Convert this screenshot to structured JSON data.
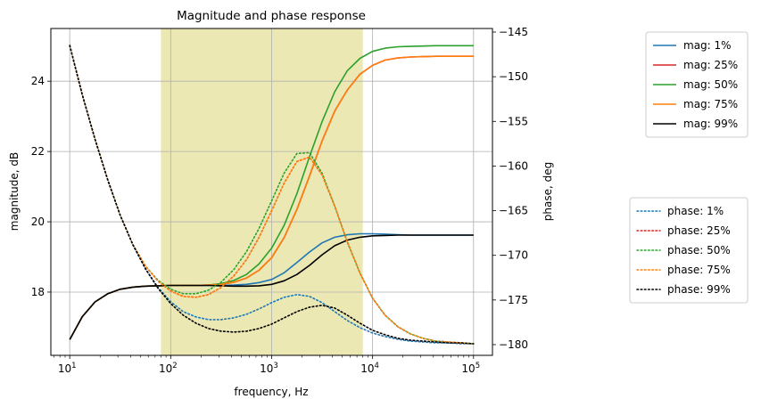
{
  "chart_data": {
    "type": "line",
    "title": "Magnitude and phase response",
    "xlabel": "frequency, Hz",
    "ylabel": "magnitude, dB",
    "y2label": "phase, deg",
    "xscale": "log",
    "xlim": [
      6.5,
      154000
    ],
    "ylim": [
      16.2,
      25.5
    ],
    "y2lim": [
      -181.2,
      -144.6
    ],
    "grid": true,
    "x_ticks": [
      {
        "value": 10,
        "base": "10",
        "exp": "1"
      },
      {
        "value": 100,
        "base": "10",
        "exp": "2"
      },
      {
        "value": 1000,
        "base": "10",
        "exp": "3"
      },
      {
        "value": 10000,
        "base": "10",
        "exp": "4"
      },
      {
        "value": 100000,
        "base": "10",
        "exp": "5"
      }
    ],
    "y_ticks": [
      "18",
      "20",
      "22",
      "24"
    ],
    "y2_ticks": [
      "−145",
      "−150",
      "−155",
      "−160",
      "−165",
      "−170",
      "−175",
      "−180"
    ],
    "shaded_band": {
      "x_from": 80,
      "x_to": 8000,
      "color": "#e0dc8a"
    },
    "x": [
      10,
      13.3,
      17.8,
      23.7,
      31.6,
      42.2,
      56.2,
      75,
      100,
      133,
      178,
      237,
      316,
      422,
      562,
      750,
      1000,
      1330,
      1780,
      2370,
      3160,
      4220,
      5620,
      7500,
      10000,
      13300,
      17800,
      23700,
      31600,
      42200,
      56200,
      75000,
      100000
    ],
    "magnitude_series": [
      {
        "name": "mag: 1%",
        "color": "#1f77b4",
        "values": [
          16.65,
          17.3,
          17.72,
          17.95,
          18.08,
          18.14,
          18.17,
          18.18,
          18.19,
          18.19,
          18.19,
          18.19,
          18.19,
          18.2,
          18.22,
          18.27,
          18.36,
          18.55,
          18.84,
          19.14,
          19.4,
          19.56,
          19.63,
          19.66,
          19.66,
          19.65,
          19.63,
          19.62,
          19.62,
          19.62,
          19.62,
          19.62,
          19.62
        ]
      },
      {
        "name": "mag: 25%",
        "color": "#d62728",
        "values": [
          16.65,
          17.3,
          17.72,
          17.95,
          18.08,
          18.14,
          18.17,
          18.18,
          18.19,
          18.19,
          18.19,
          18.2,
          18.22,
          18.28,
          18.4,
          18.62,
          18.98,
          19.55,
          20.35,
          21.3,
          22.3,
          23.15,
          23.75,
          24.2,
          24.45,
          24.6,
          24.66,
          24.69,
          24.7,
          24.71,
          24.71,
          24.71,
          24.71
        ]
      },
      {
        "name": "mag: 50%",
        "color": "#2ca02c",
        "values": [
          16.65,
          17.3,
          17.72,
          17.95,
          18.08,
          18.14,
          18.17,
          18.18,
          18.19,
          18.19,
          18.19,
          18.2,
          18.24,
          18.33,
          18.5,
          18.8,
          19.25,
          19.9,
          20.8,
          21.85,
          22.85,
          23.7,
          24.3,
          24.65,
          24.85,
          24.94,
          24.98,
          24.99,
          25.0,
          25.01,
          25.01,
          25.01,
          25.01
        ]
      },
      {
        "name": "mag: 75%",
        "color": "#ff7f0e",
        "values": [
          16.65,
          17.3,
          17.72,
          17.95,
          18.08,
          18.14,
          18.17,
          18.18,
          18.19,
          18.19,
          18.19,
          18.2,
          18.22,
          18.28,
          18.4,
          18.62,
          18.98,
          19.55,
          20.35,
          21.3,
          22.3,
          23.15,
          23.75,
          24.2,
          24.45,
          24.6,
          24.66,
          24.69,
          24.7,
          24.71,
          24.71,
          24.71,
          24.71
        ]
      },
      {
        "name": "mag: 99%",
        "color": "#000000",
        "values": [
          16.65,
          17.3,
          17.72,
          17.95,
          18.08,
          18.14,
          18.17,
          18.18,
          18.19,
          18.19,
          18.19,
          18.19,
          18.18,
          18.17,
          18.17,
          18.18,
          18.22,
          18.32,
          18.5,
          18.76,
          19.06,
          19.32,
          19.48,
          19.56,
          19.6,
          19.61,
          19.62,
          19.62,
          19.62,
          19.62,
          19.62,
          19.62,
          19.62
        ]
      }
    ],
    "phase_series": [
      {
        "name": "phase: 1%",
        "color": "#1f77b4",
        "values": [
          -146.5,
          -152,
          -157,
          -161.5,
          -165.5,
          -168.8,
          -171.5,
          -173.6,
          -175.2,
          -176.3,
          -176.9,
          -177.2,
          -177.2,
          -177.0,
          -176.6,
          -176.0,
          -175.3,
          -174.7,
          -174.4,
          -174.6,
          -175.3,
          -176.3,
          -177.3,
          -178.1,
          -178.7,
          -179.1,
          -179.4,
          -179.6,
          -179.7,
          -179.8,
          -179.8,
          -179.9,
          -179.9
        ]
      },
      {
        "name": "phase: 25%",
        "color": "#d62728",
        "values": [
          -146.5,
          -152,
          -157,
          -161.5,
          -165.5,
          -168.8,
          -171.2,
          -172.9,
          -174.0,
          -174.6,
          -174.7,
          -174.4,
          -173.6,
          -172.3,
          -170.5,
          -168.0,
          -165.0,
          -161.9,
          -159.5,
          -159.0,
          -161.0,
          -164.5,
          -168.5,
          -172.0,
          -174.8,
          -176.7,
          -178.0,
          -178.8,
          -179.3,
          -179.6,
          -179.7,
          -179.8,
          -179.9
        ]
      },
      {
        "name": "phase: 50%",
        "color": "#2ca02c",
        "values": [
          -146.5,
          -152,
          -157,
          -161.5,
          -165.5,
          -168.8,
          -171.2,
          -172.8,
          -173.8,
          -174.3,
          -174.3,
          -173.9,
          -173.0,
          -171.6,
          -169.6,
          -167.0,
          -163.9,
          -160.8,
          -158.6,
          -158.5,
          -160.8,
          -164.5,
          -168.5,
          -172.0,
          -174.8,
          -176.7,
          -178.0,
          -178.8,
          -179.3,
          -179.6,
          -179.7,
          -179.8,
          -179.9
        ]
      },
      {
        "name": "phase: 75%",
        "color": "#ff7f0e",
        "values": [
          -146.5,
          -152,
          -157,
          -161.5,
          -165.5,
          -168.8,
          -171.2,
          -172.9,
          -174.0,
          -174.6,
          -174.7,
          -174.4,
          -173.6,
          -172.3,
          -170.5,
          -168.0,
          -165.0,
          -161.9,
          -159.5,
          -159.0,
          -161.0,
          -164.5,
          -168.5,
          -172.0,
          -174.8,
          -176.7,
          -178.0,
          -178.8,
          -179.3,
          -179.6,
          -179.7,
          -179.8,
          -179.9
        ]
      },
      {
        "name": "phase: 99%",
        "color": "#000000",
        "values": [
          -146.5,
          -152,
          -157,
          -161.5,
          -165.5,
          -168.8,
          -171.5,
          -173.7,
          -175.4,
          -176.7,
          -177.6,
          -178.2,
          -178.5,
          -178.6,
          -178.5,
          -178.2,
          -177.7,
          -177.0,
          -176.3,
          -175.8,
          -175.6,
          -175.9,
          -176.7,
          -177.6,
          -178.4,
          -178.9,
          -179.3,
          -179.5,
          -179.6,
          -179.7,
          -179.8,
          -179.8,
          -179.9
        ]
      }
    ],
    "legend_placement": "right, outside plot (magnitude upper group, phase lower group)"
  }
}
